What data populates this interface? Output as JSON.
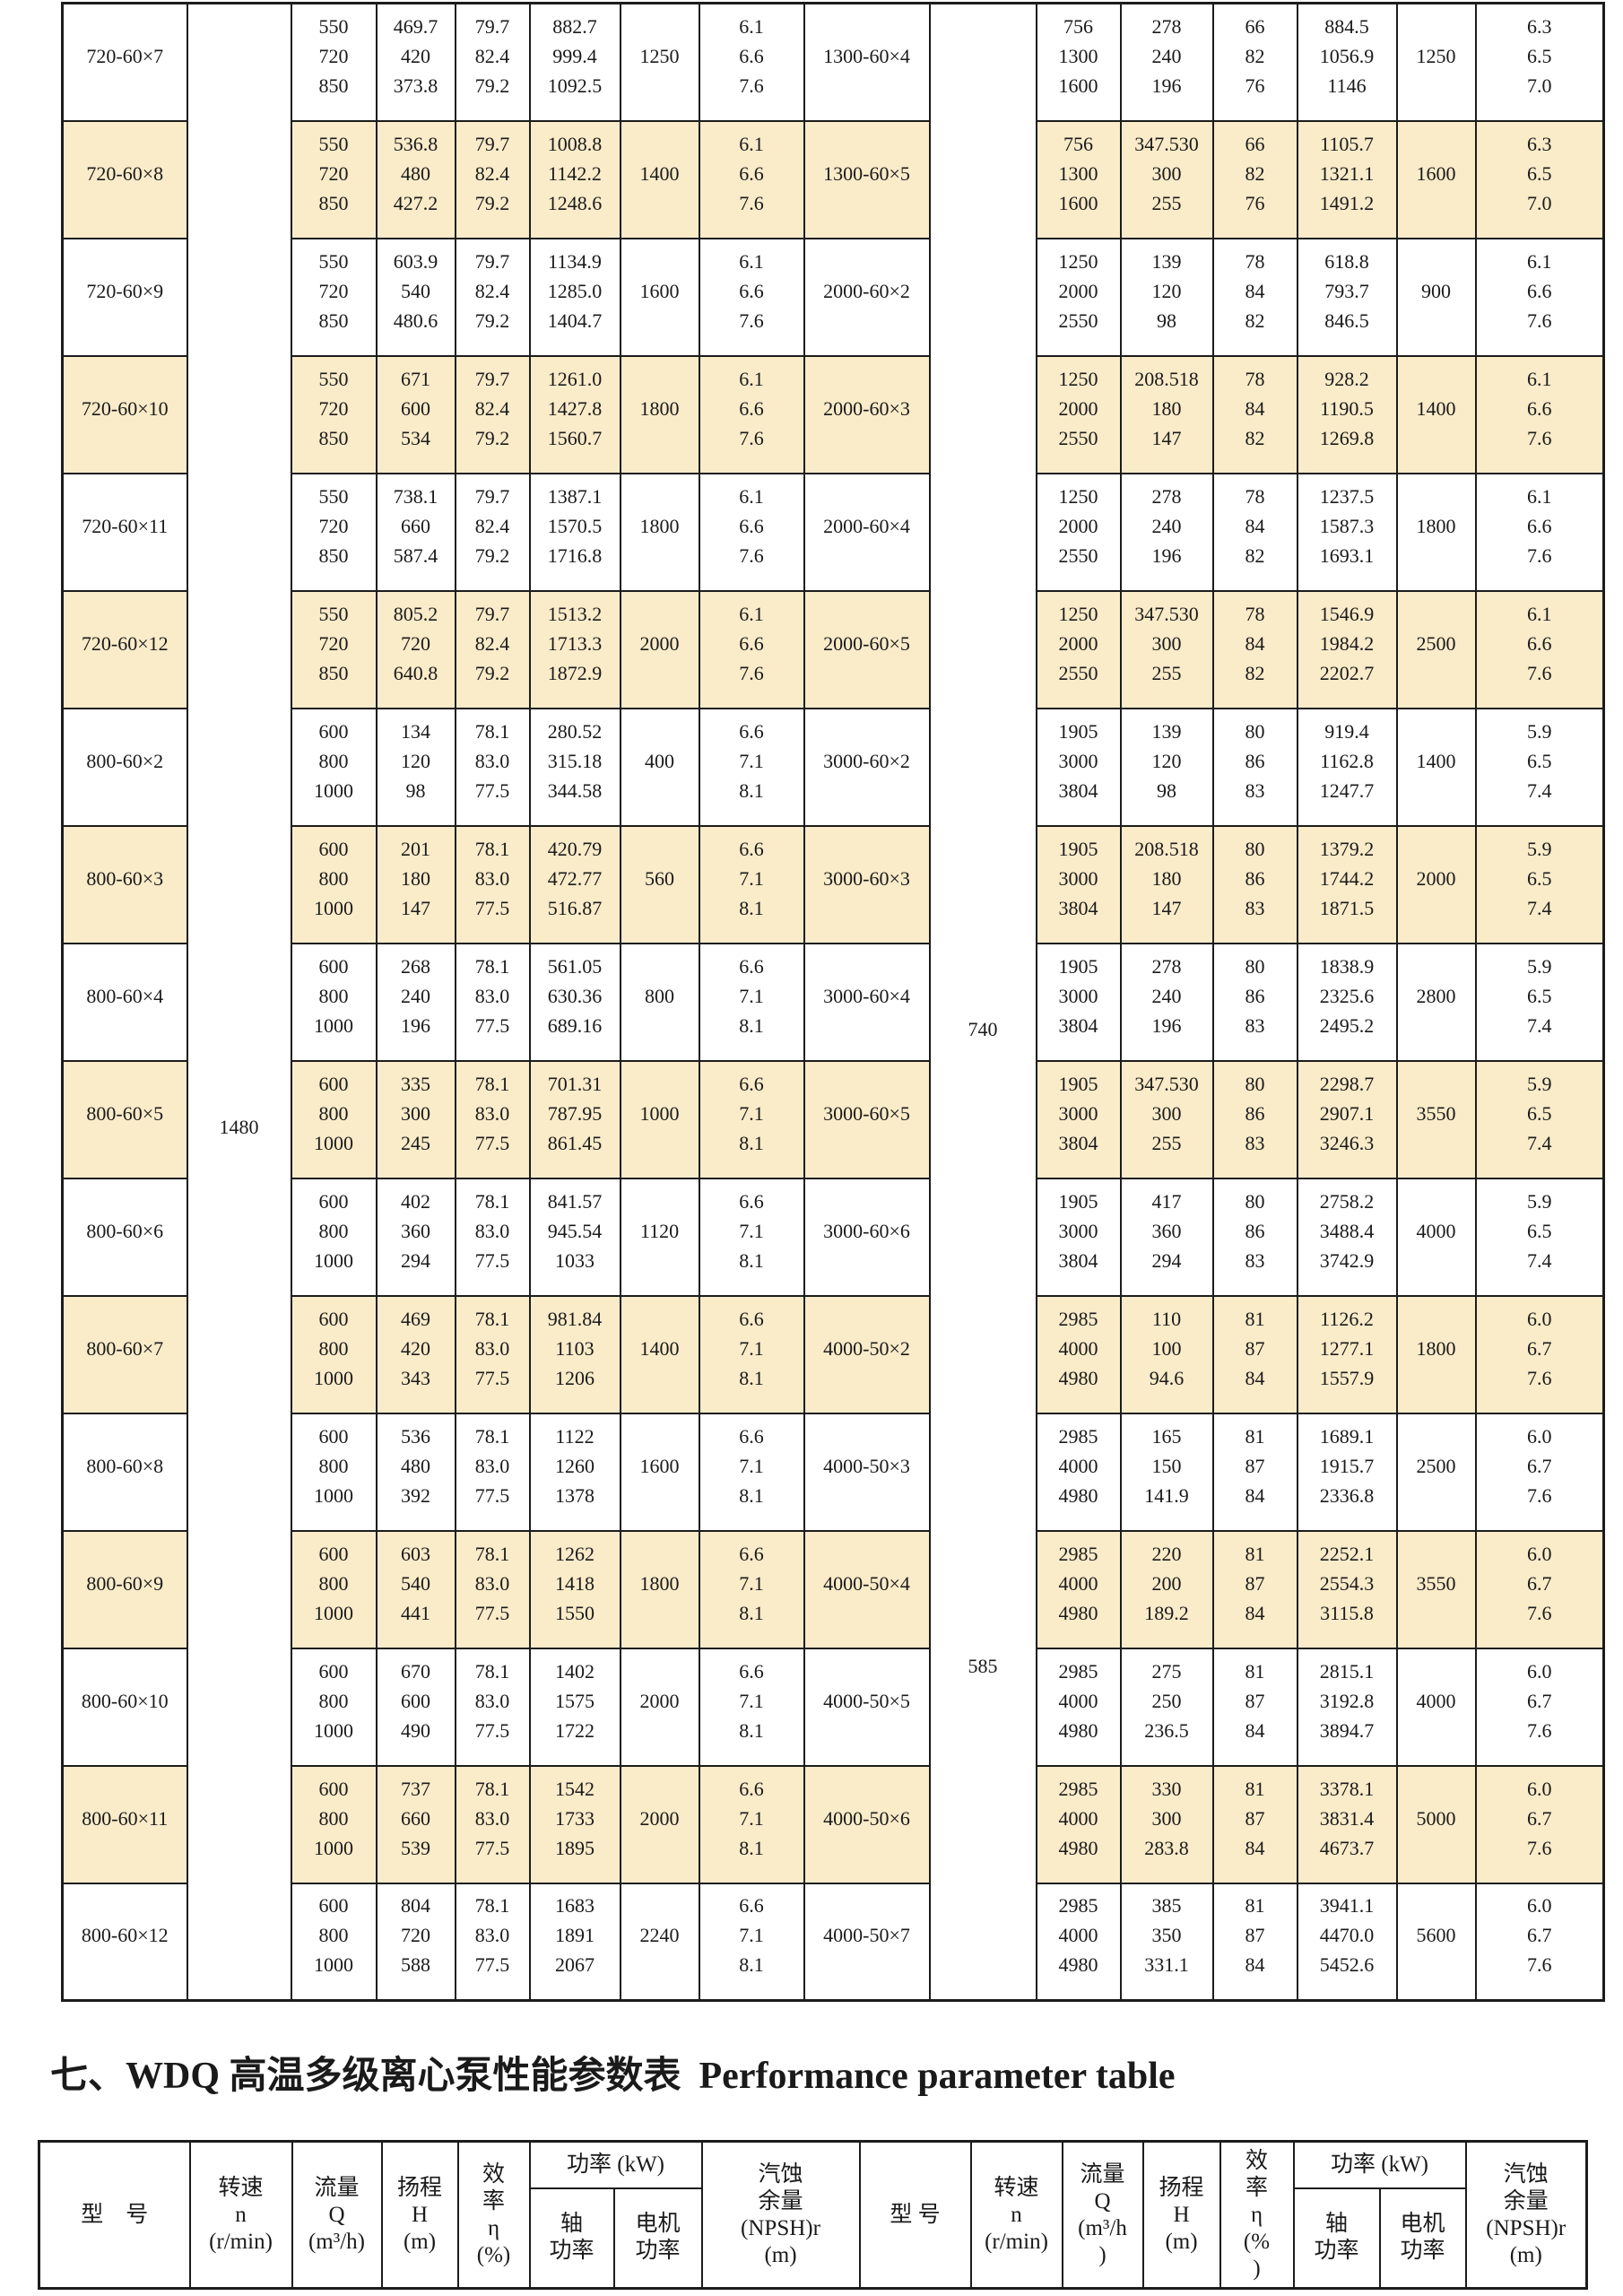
{
  "colors": {
    "row_shade": "#FAEBC9",
    "border": "#1c1c1c",
    "text": "#1a1a1a",
    "page_bg": "#ffffff"
  },
  "section_title": {
    "zh": "七、WDQ 高温多级离心泵性能参数表",
    "en": "Performance parameter table"
  },
  "main_table": {
    "speed_left": "1480",
    "speed_740": "740",
    "speed_585": "585",
    "rows": [
      {
        "shaded": false,
        "model": "720-60×7",
        "flow": [
          "550",
          "720",
          "850"
        ],
        "head": [
          "469.7",
          "420",
          "373.8"
        ],
        "eff": [
          "79.7",
          "82.4",
          "79.2"
        ],
        "power": [
          "882.7",
          "999.4",
          "1092.5"
        ],
        "motor": "1250",
        "npsh": [
          "6.1",
          "6.6",
          "7.6"
        ],
        "model2": "1300-60×4",
        "flow2": [
          "756",
          "1300",
          "1600"
        ],
        "head2": [
          "278",
          "240",
          "196"
        ],
        "eff2": [
          "66",
          "82",
          "76"
        ],
        "power2": [
          "884.5",
          "1056.9",
          "1146"
        ],
        "motor2": "1250",
        "npsh2": [
          "6.3",
          "6.5",
          "7.0"
        ]
      },
      {
        "shaded": true,
        "model": "720-60×8",
        "flow": [
          "550",
          "720",
          "850"
        ],
        "head": [
          "536.8",
          "480",
          "427.2"
        ],
        "eff": [
          "79.7",
          "82.4",
          "79.2"
        ],
        "power": [
          "1008.8",
          "1142.2",
          "1248.6"
        ],
        "motor": "1400",
        "npsh": [
          "6.1",
          "6.6",
          "7.6"
        ],
        "model2": "1300-60×5",
        "flow2": [
          "756",
          "1300",
          "1600"
        ],
        "head2": [
          "347.530",
          "300",
          "255"
        ],
        "eff2": [
          "66",
          "82",
          "76"
        ],
        "power2": [
          "1105.7",
          "1321.1",
          "1491.2"
        ],
        "motor2": "1600",
        "npsh2": [
          "6.3",
          "6.5",
          "7.0"
        ]
      },
      {
        "shaded": false,
        "model": "720-60×9",
        "flow": [
          "550",
          "720",
          "850"
        ],
        "head": [
          "603.9",
          "540",
          "480.6"
        ],
        "eff": [
          "79.7",
          "82.4",
          "79.2"
        ],
        "power": [
          "1134.9",
          "1285.0",
          "1404.7"
        ],
        "motor": "1600",
        "npsh": [
          "6.1",
          "6.6",
          "7.6"
        ],
        "model2": "2000-60×2",
        "flow2": [
          "1250",
          "2000",
          "2550"
        ],
        "head2": [
          "139",
          "120",
          "98"
        ],
        "eff2": [
          "78",
          "84",
          "82"
        ],
        "power2": [
          "618.8",
          "793.7",
          "846.5"
        ],
        "motor2": "900",
        "npsh2": [
          "6.1",
          "6.6",
          "7.6"
        ]
      },
      {
        "shaded": true,
        "model": "720-60×10",
        "flow": [
          "550",
          "720",
          "850"
        ],
        "head": [
          "671",
          "600",
          "534"
        ],
        "eff": [
          "79.7",
          "82.4",
          "79.2"
        ],
        "power": [
          "1261.0",
          "1427.8",
          "1560.7"
        ],
        "motor": "1800",
        "npsh": [
          "6.1",
          "6.6",
          "7.6"
        ],
        "model2": "2000-60×3",
        "flow2": [
          "1250",
          "2000",
          "2550"
        ],
        "head2": [
          "208.518",
          "180",
          "147"
        ],
        "eff2": [
          "78",
          "84",
          "82"
        ],
        "power2": [
          "928.2",
          "1190.5",
          "1269.8"
        ],
        "motor2": "1400",
        "npsh2": [
          "6.1",
          "6.6",
          "7.6"
        ]
      },
      {
        "shaded": false,
        "model": "720-60×11",
        "flow": [
          "550",
          "720",
          "850"
        ],
        "head": [
          "738.1",
          "660",
          "587.4"
        ],
        "eff": [
          "79.7",
          "82.4",
          "79.2"
        ],
        "power": [
          "1387.1",
          "1570.5",
          "1716.8"
        ],
        "motor": "1800",
        "npsh": [
          "6.1",
          "6.6",
          "7.6"
        ],
        "model2": "2000-60×4",
        "flow2": [
          "1250",
          "2000",
          "2550"
        ],
        "head2": [
          "278",
          "240",
          "196"
        ],
        "eff2": [
          "78",
          "84",
          "82"
        ],
        "power2": [
          "1237.5",
          "1587.3",
          "1693.1"
        ],
        "motor2": "1800",
        "npsh2": [
          "6.1",
          "6.6",
          "7.6"
        ]
      },
      {
        "shaded": true,
        "model": "720-60×12",
        "flow": [
          "550",
          "720",
          "850"
        ],
        "head": [
          "805.2",
          "720",
          "640.8"
        ],
        "eff": [
          "79.7",
          "82.4",
          "79.2"
        ],
        "power": [
          "1513.2",
          "1713.3",
          "1872.9"
        ],
        "motor": "2000",
        "npsh": [
          "6.1",
          "6.6",
          "7.6"
        ],
        "model2": "2000-60×5",
        "flow2": [
          "1250",
          "2000",
          "2550"
        ],
        "head2": [
          "347.530",
          "300",
          "255"
        ],
        "eff2": [
          "78",
          "84",
          "82"
        ],
        "power2": [
          "1546.9",
          "1984.2",
          "2202.7"
        ],
        "motor2": "2500",
        "npsh2": [
          "6.1",
          "6.6",
          "7.6"
        ]
      },
      {
        "shaded": false,
        "model": "800-60×2",
        "flow": [
          "600",
          "800",
          "1000"
        ],
        "head": [
          "134",
          "120",
          "98"
        ],
        "eff": [
          "78.1",
          "83.0",
          "77.5"
        ],
        "power": [
          "280.52",
          "315.18",
          "344.58"
        ],
        "motor": "400",
        "npsh": [
          "6.6",
          "7.1",
          "8.1"
        ],
        "model2": "3000-60×2",
        "flow2": [
          "1905",
          "3000",
          "3804"
        ],
        "head2": [
          "139",
          "120",
          "98"
        ],
        "eff2": [
          "80",
          "86",
          "83"
        ],
        "power2": [
          "919.4",
          "1162.8",
          "1247.7"
        ],
        "motor2": "1400",
        "npsh2": [
          "5.9",
          "6.5",
          "7.4"
        ]
      },
      {
        "shaded": true,
        "model": "800-60×3",
        "flow": [
          "600",
          "800",
          "1000"
        ],
        "head": [
          "201",
          "180",
          "147"
        ],
        "eff": [
          "78.1",
          "83.0",
          "77.5"
        ],
        "power": [
          "420.79",
          "472.77",
          "516.87"
        ],
        "motor": "560",
        "npsh": [
          "6.6",
          "7.1",
          "8.1"
        ],
        "model2": "3000-60×3",
        "flow2": [
          "1905",
          "3000",
          "3804"
        ],
        "head2": [
          "208.518",
          "180",
          "147"
        ],
        "eff2": [
          "80",
          "86",
          "83"
        ],
        "power2": [
          "1379.2",
          "1744.2",
          "1871.5"
        ],
        "motor2": "2000",
        "npsh2": [
          "5.9",
          "6.5",
          "7.4"
        ]
      },
      {
        "shaded": false,
        "model": "800-60×4",
        "flow": [
          "600",
          "800",
          "1000"
        ],
        "head": [
          "268",
          "240",
          "196"
        ],
        "eff": [
          "78.1",
          "83.0",
          "77.5"
        ],
        "power": [
          "561.05",
          "630.36",
          "689.16"
        ],
        "motor": "800",
        "npsh": [
          "6.6",
          "7.1",
          "8.1"
        ],
        "model2": "3000-60×4",
        "flow2": [
          "1905",
          "3000",
          "3804"
        ],
        "head2": [
          "278",
          "240",
          "196"
        ],
        "eff2": [
          "80",
          "86",
          "83"
        ],
        "power2": [
          "1838.9",
          "2325.6",
          "2495.2"
        ],
        "motor2": "2800",
        "npsh2": [
          "5.9",
          "6.5",
          "7.4"
        ]
      },
      {
        "shaded": true,
        "model": "800-60×5",
        "flow": [
          "600",
          "800",
          "1000"
        ],
        "head": [
          "335",
          "300",
          "245"
        ],
        "eff": [
          "78.1",
          "83.0",
          "77.5"
        ],
        "power": [
          "701.31",
          "787.95",
          "861.45"
        ],
        "motor": "1000",
        "npsh": [
          "6.6",
          "7.1",
          "8.1"
        ],
        "model2": "3000-60×5",
        "flow2": [
          "1905",
          "3000",
          "3804"
        ],
        "head2": [
          "347.530",
          "300",
          "255"
        ],
        "eff2": [
          "80",
          "86",
          "83"
        ],
        "power2": [
          "2298.7",
          "2907.1",
          "3246.3"
        ],
        "motor2": "3550",
        "npsh2": [
          "5.9",
          "6.5",
          "7.4"
        ]
      },
      {
        "shaded": false,
        "model": "800-60×6",
        "flow": [
          "600",
          "800",
          "1000"
        ],
        "head": [
          "402",
          "360",
          "294"
        ],
        "eff": [
          "78.1",
          "83.0",
          "77.5"
        ],
        "power": [
          "841.57",
          "945.54",
          "1033"
        ],
        "motor": "1120",
        "npsh": [
          "6.6",
          "7.1",
          "8.1"
        ],
        "model2": "3000-60×6",
        "flow2": [
          "1905",
          "3000",
          "3804"
        ],
        "head2": [
          "417",
          "360",
          "294"
        ],
        "eff2": [
          "80",
          "86",
          "83"
        ],
        "power2": [
          "2758.2",
          "3488.4",
          "3742.9"
        ],
        "motor2": "4000",
        "npsh2": [
          "5.9",
          "6.5",
          "7.4"
        ]
      },
      {
        "shaded": true,
        "model": "800-60×7",
        "flow": [
          "600",
          "800",
          "1000"
        ],
        "head": [
          "469",
          "420",
          "343"
        ],
        "eff": [
          "78.1",
          "83.0",
          "77.5"
        ],
        "power": [
          "981.84",
          "1103",
          "1206"
        ],
        "motor": "1400",
        "npsh": [
          "6.6",
          "7.1",
          "8.1"
        ],
        "model2": "4000-50×2",
        "flow2": [
          "2985",
          "4000",
          "4980"
        ],
        "head2": [
          "110",
          "100",
          "94.6"
        ],
        "eff2": [
          "81",
          "87",
          "84"
        ],
        "power2": [
          "1126.2",
          "1277.1",
          "1557.9"
        ],
        "motor2": "1800",
        "npsh2": [
          "6.0",
          "6.7",
          "7.6"
        ]
      },
      {
        "shaded": false,
        "model": "800-60×8",
        "flow": [
          "600",
          "800",
          "1000"
        ],
        "head": [
          "536",
          "480",
          "392"
        ],
        "eff": [
          "78.1",
          "83.0",
          "77.5"
        ],
        "power": [
          "1122",
          "1260",
          "1378"
        ],
        "motor": "1600",
        "npsh": [
          "6.6",
          "7.1",
          "8.1"
        ],
        "model2": "4000-50×3",
        "flow2": [
          "2985",
          "4000",
          "4980"
        ],
        "head2": [
          "165",
          "150",
          "141.9"
        ],
        "eff2": [
          "81",
          "87",
          "84"
        ],
        "power2": [
          "1689.1",
          "1915.7",
          "2336.8"
        ],
        "motor2": "2500",
        "npsh2": [
          "6.0",
          "6.7",
          "7.6"
        ]
      },
      {
        "shaded": true,
        "model": "800-60×9",
        "flow": [
          "600",
          "800",
          "1000"
        ],
        "head": [
          "603",
          "540",
          "441"
        ],
        "eff": [
          "78.1",
          "83.0",
          "77.5"
        ],
        "power": [
          "1262",
          "1418",
          "1550"
        ],
        "motor": "1800",
        "npsh": [
          "6.6",
          "7.1",
          "8.1"
        ],
        "model2": "4000-50×4",
        "flow2": [
          "2985",
          "4000",
          "4980"
        ],
        "head2": [
          "220",
          "200",
          "189.2"
        ],
        "eff2": [
          "81",
          "87",
          "84"
        ],
        "power2": [
          "2252.1",
          "2554.3",
          "3115.8"
        ],
        "motor2": "3550",
        "npsh2": [
          "6.0",
          "6.7",
          "7.6"
        ]
      },
      {
        "shaded": false,
        "model": "800-60×10",
        "flow": [
          "600",
          "800",
          "1000"
        ],
        "head": [
          "670",
          "600",
          "490"
        ],
        "eff": [
          "78.1",
          "83.0",
          "77.5"
        ],
        "power": [
          "1402",
          "1575",
          "1722"
        ],
        "motor": "2000",
        "npsh": [
          "6.6",
          "7.1",
          "8.1"
        ],
        "model2": "4000-50×5",
        "flow2": [
          "2985",
          "4000",
          "4980"
        ],
        "head2": [
          "275",
          "250",
          "236.5"
        ],
        "eff2": [
          "81",
          "87",
          "84"
        ],
        "power2": [
          "2815.1",
          "3192.8",
          "3894.7"
        ],
        "motor2": "4000",
        "npsh2": [
          "6.0",
          "6.7",
          "7.6"
        ]
      },
      {
        "shaded": true,
        "model": "800-60×11",
        "flow": [
          "600",
          "800",
          "1000"
        ],
        "head": [
          "737",
          "660",
          "539"
        ],
        "eff": [
          "78.1",
          "83.0",
          "77.5"
        ],
        "power": [
          "1542",
          "1733",
          "1895"
        ],
        "motor": "2000",
        "npsh": [
          "6.6",
          "7.1",
          "8.1"
        ],
        "model2": "4000-50×6",
        "flow2": [
          "2985",
          "4000",
          "4980"
        ],
        "head2": [
          "330",
          "300",
          "283.8"
        ],
        "eff2": [
          "81",
          "87",
          "84"
        ],
        "power2": [
          "3378.1",
          "3831.4",
          "4673.7"
        ],
        "motor2": "5000",
        "npsh2": [
          "6.0",
          "6.7",
          "7.6"
        ]
      },
      {
        "shaded": false,
        "model": "800-60×12",
        "flow": [
          "600",
          "800",
          "1000"
        ],
        "head": [
          "804",
          "720",
          "588"
        ],
        "eff": [
          "78.1",
          "83.0",
          "77.5"
        ],
        "power": [
          "1683",
          "1891",
          "2067"
        ],
        "motor": "2240",
        "npsh": [
          "6.6",
          "7.1",
          "8.1"
        ],
        "model2": "4000-50×7",
        "flow2": [
          "2985",
          "4000",
          "4980"
        ],
        "head2": [
          "385",
          "350",
          "331.1"
        ],
        "eff2": [
          "81",
          "87",
          "84"
        ],
        "power2": [
          "3941.1",
          "4470.0",
          "5452.6"
        ],
        "motor2": "5600",
        "npsh2": [
          "6.0",
          "6.7",
          "7.6"
        ]
      }
    ]
  },
  "header": {
    "left": {
      "model": "型　号",
      "speed": [
        "转速",
        "n",
        "(r/min)"
      ],
      "flow": [
        "流量",
        "Q",
        "(m³/h)"
      ],
      "head": [
        "扬程",
        "H",
        "(m)"
      ],
      "eff": [
        "效",
        "率",
        "η",
        "(%)"
      ],
      "power_group": "功率 (kW)",
      "shaft": [
        "轴",
        "功率"
      ],
      "motor": [
        "电机",
        "功率"
      ],
      "npsh": [
        "汽蚀",
        "余量",
        "(NPSH)r",
        "(m)"
      ]
    },
    "right": {
      "model": "型 号",
      "speed": [
        "转速",
        "n",
        "(r/min)"
      ],
      "flow": [
        "流量",
        "Q",
        "(m³/h",
        ")"
      ],
      "head": [
        "扬程",
        "H",
        "(m)"
      ],
      "eff": [
        "效",
        "率",
        "η",
        "(%",
        ")"
      ],
      "power_group": "功率 (kW)",
      "shaft": [
        "轴",
        "功率"
      ],
      "motor": [
        "电机",
        "功率"
      ],
      "npsh": [
        "汽蚀",
        "余量",
        "(NPSH)r",
        "(m)"
      ]
    }
  }
}
